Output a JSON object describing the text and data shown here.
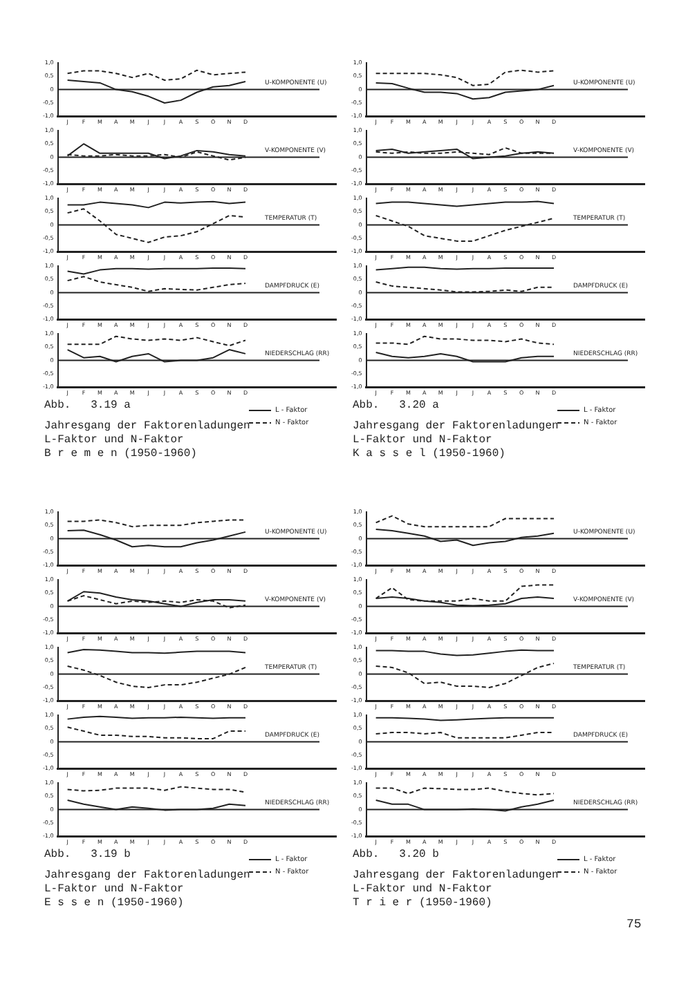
{
  "chart_data": [
    {
      "type": "line",
      "annotations": [
        "U-KOMPONENTE (U)"
      ],
      "categories": [
        "J",
        "F",
        "M",
        "A",
        "M",
        "J",
        "J",
        "A",
        "S",
        "O",
        "N",
        "D"
      ],
      "ylim": [
        -1,
        1
      ],
      "yticks": [
        {
          "value": 1,
          "label": "1,0"
        },
        {
          "value": 0.5,
          "label": "0,5"
        },
        {
          "value": 0,
          "label": "0"
        },
        {
          "value": -0.5,
          "label": "-0,5"
        },
        {
          "value": -1,
          "label": "-1,0"
        }
      ],
      "grid": false,
      "legend": false,
      "marker": "none",
      "ref_lines": [
        {
          "axis": "y",
          "value": 0
        }
      ],
      "series": [
        {
          "color": "#222222",
          "line_style": "solid",
          "values": [
            0.35,
            0.3,
            0.25,
            0.0,
            -0.08,
            -0.25,
            -0.5,
            -0.4,
            -0.1,
            0.1,
            0.15,
            0.3
          ]
        },
        {
          "color": "#222222",
          "line_style": "dashed",
          "values": [
            0.6,
            0.7,
            0.7,
            0.6,
            0.45,
            0.6,
            0.35,
            0.4,
            0.72,
            0.55,
            0.6,
            0.65
          ]
        }
      ]
    },
    {
      "type": "line",
      "annotations": [
        "V-KOMPONENTE (V)"
      ],
      "categories": [
        "J",
        "F",
        "M",
        "A",
        "M",
        "J",
        "J",
        "A",
        "S",
        "O",
        "N",
        "D"
      ],
      "ylim": [
        -1,
        1
      ],
      "yticks": [
        {
          "value": 1,
          "label": "1,0"
        },
        {
          "value": 0.5,
          "label": "0,5"
        },
        {
          "value": 0,
          "label": "0"
        },
        {
          "value": -0.5,
          "label": "-0,5"
        },
        {
          "value": -1,
          "label": "-1,0"
        }
      ],
      "grid": false,
      "legend": false,
      "marker": "none",
      "ref_lines": [
        {
          "axis": "y",
          "value": 0
        }
      ],
      "series": [
        {
          "color": "#222222",
          "line_style": "solid",
          "values": [
            0.05,
            0.5,
            0.15,
            0.15,
            0.15,
            0.15,
            -0.05,
            0.05,
            0.25,
            0.2,
            0.1,
            0.05
          ]
        },
        {
          "color": "#222222",
          "line_style": "dashed",
          "values": [
            0.1,
            0.05,
            0.05,
            0.1,
            0.05,
            0.05,
            0.1,
            0.0,
            0.2,
            0.05,
            -0.1,
            0.0
          ]
        }
      ]
    },
    {
      "type": "line",
      "annotations": [
        "TEMPERATUR (T)"
      ],
      "categories": [
        "J",
        "F",
        "M",
        "A",
        "M",
        "J",
        "J",
        "A",
        "S",
        "O",
        "N",
        "D"
      ],
      "ylim": [
        -1,
        1
      ],
      "yticks": [
        {
          "value": 1,
          "label": "1,0"
        },
        {
          "value": 0.5,
          "label": "0,5"
        },
        {
          "value": 0,
          "label": "0"
        },
        {
          "value": -0.5,
          "label": "-0,5"
        },
        {
          "value": -1,
          "label": "-1,0"
        }
      ],
      "grid": false,
      "legend": false,
      "marker": "none",
      "ref_lines": [
        {
          "axis": "y",
          "value": 0
        }
      ],
      "series": [
        {
          "color": "#222222",
          "line_style": "solid",
          "values": [
            0.75,
            0.75,
            0.85,
            0.8,
            0.75,
            0.65,
            0.85,
            0.82,
            0.85,
            0.87,
            0.8,
            0.85
          ]
        },
        {
          "color": "#222222",
          "line_style": "dashed",
          "values": [
            0.45,
            0.6,
            0.15,
            -0.35,
            -0.5,
            -0.65,
            -0.45,
            -0.4,
            -0.25,
            0.05,
            0.35,
            0.3
          ]
        }
      ]
    },
    {
      "type": "line",
      "annotations": [
        "DAMPFDRUCK (E)"
      ],
      "categories": [
        "J",
        "F",
        "M",
        "A",
        "M",
        "J",
        "J",
        "A",
        "S",
        "O",
        "N",
        "D"
      ],
      "ylim": [
        -1,
        1
      ],
      "yticks": [
        {
          "value": 1,
          "label": "1,0"
        },
        {
          "value": 0.5,
          "label": "0,5"
        },
        {
          "value": 0,
          "label": "0"
        },
        {
          "value": -0.5,
          "label": "-0,5"
        },
        {
          "value": -1,
          "label": "-1,0"
        }
      ],
      "grid": false,
      "legend": false,
      "marker": "none",
      "ref_lines": [
        {
          "axis": "y",
          "value": 0
        }
      ],
      "series": [
        {
          "color": "#222222",
          "line_style": "solid",
          "values": [
            0.8,
            0.7,
            0.85,
            0.9,
            0.9,
            0.88,
            0.9,
            0.9,
            0.9,
            0.92,
            0.92,
            0.9
          ]
        },
        {
          "color": "#222222",
          "line_style": "dashed",
          "values": [
            0.45,
            0.6,
            0.4,
            0.3,
            0.2,
            0.05,
            0.15,
            0.12,
            0.1,
            0.2,
            0.3,
            0.35
          ]
        }
      ]
    },
    {
      "type": "line",
      "annotations": [
        "NIEDERSCHLAG (RR)",
        "Abb.   3.19 a",
        "Jahresgang der Faktorenladungen",
        "L-Faktor und N-Faktor",
        "B r e m e n (1950-1960)"
      ],
      "categories": [
        "J",
        "F",
        "M",
        "A",
        "M",
        "J",
        "J",
        "A",
        "S",
        "O",
        "N",
        "D"
      ],
      "ylim": [
        -1,
        1
      ],
      "yticks": [
        {
          "value": 1,
          "label": "1,0"
        },
        {
          "value": 0.5,
          "label": "0,5"
        },
        {
          "value": 0,
          "label": "0"
        },
        {
          "value": -0.5,
          "label": "-0,5"
        },
        {
          "value": -1,
          "label": "-1,0"
        }
      ],
      "grid": false,
      "legend": "bottom right",
      "marker": "none",
      "ref_lines": [
        {
          "axis": "y",
          "value": 0
        }
      ],
      "series": [
        {
          "name": "L - Faktor",
          "color": "#222222",
          "line_style": "solid",
          "values": [
            0.4,
            0.1,
            0.15,
            -0.05,
            0.15,
            0.25,
            -0.05,
            0.0,
            0.0,
            0.1,
            0.4,
            0.25
          ]
        },
        {
          "name": "N - Faktor",
          "color": "#222222",
          "line_style": "dashed",
          "values": [
            0.6,
            0.6,
            0.6,
            0.9,
            0.8,
            0.75,
            0.8,
            0.75,
            0.85,
            0.7,
            0.55,
            0.75
          ]
        }
      ]
    },
    {
      "type": "line",
      "annotations": [
        "U-KOMPONENTE (U)"
      ],
      "categories": [
        "J",
        "F",
        "M",
        "A",
        "M",
        "J",
        "J",
        "A",
        "S",
        "O",
        "N",
        "D"
      ],
      "ylim": [
        -1,
        1
      ],
      "yticks": [
        {
          "value": 1,
          "label": "1,0"
        },
        {
          "value": 0.5,
          "label": "0,5"
        },
        {
          "value": 0,
          "label": "0"
        },
        {
          "value": -0.5,
          "label": "-0,5"
        },
        {
          "value": -1,
          "label": "-1,0"
        }
      ],
      "grid": false,
      "legend": false,
      "marker": "none",
      "ref_lines": [
        {
          "axis": "y",
          "value": 0
        }
      ],
      "series": [
        {
          "color": "#222222",
          "line_style": "solid",
          "values": [
            0.25,
            0.22,
            0.05,
            -0.1,
            -0.1,
            -0.15,
            -0.35,
            -0.3,
            -0.1,
            -0.05,
            0.0,
            0.15
          ]
        },
        {
          "color": "#222222",
          "line_style": "dashed",
          "values": [
            0.6,
            0.6,
            0.6,
            0.6,
            0.55,
            0.45,
            0.15,
            0.2,
            0.65,
            0.72,
            0.65,
            0.7
          ]
        }
      ]
    },
    {
      "type": "line",
      "annotations": [
        "V-KOMPONENTE (V)"
      ],
      "categories": [
        "J",
        "F",
        "M",
        "A",
        "M",
        "J",
        "J",
        "A",
        "S",
        "O",
        "N",
        "D"
      ],
      "ylim": [
        -1,
        1
      ],
      "yticks": [
        {
          "value": 1,
          "label": "1,0"
        },
        {
          "value": 0.5,
          "label": "0,5"
        },
        {
          "value": 0,
          "label": "0"
        },
        {
          "value": -0.5,
          "label": "-0,5"
        },
        {
          "value": -1,
          "label": "-1,0"
        }
      ],
      "grid": false,
      "legend": false,
      "marker": "none",
      "ref_lines": [
        {
          "axis": "y",
          "value": 0
        }
      ],
      "series": [
        {
          "color": "#222222",
          "line_style": "solid",
          "values": [
            0.25,
            0.3,
            0.15,
            0.2,
            0.25,
            0.3,
            -0.05,
            0.0,
            0.05,
            0.15,
            0.2,
            0.15
          ]
        },
        {
          "color": "#222222",
          "line_style": "dashed",
          "values": [
            0.2,
            0.15,
            0.2,
            0.15,
            0.15,
            0.2,
            0.15,
            0.1,
            0.35,
            0.15,
            0.15,
            0.15
          ]
        }
      ]
    },
    {
      "type": "line",
      "annotations": [
        "TEMPERATUR (T)"
      ],
      "categories": [
        "J",
        "F",
        "M",
        "A",
        "M",
        "J",
        "J",
        "A",
        "S",
        "O",
        "N",
        "D"
      ],
      "ylim": [
        -1,
        1
      ],
      "yticks": [
        {
          "value": 1,
          "label": "1,0"
        },
        {
          "value": 0.5,
          "label": "0,5"
        },
        {
          "value": 0,
          "label": "0"
        },
        {
          "value": -0.5,
          "label": "-0,5"
        },
        {
          "value": -1,
          "label": "-1,0"
        }
      ],
      "grid": false,
      "legend": false,
      "marker": "none",
      "ref_lines": [
        {
          "axis": "y",
          "value": 0
        }
      ],
      "series": [
        {
          "color": "#222222",
          "line_style": "solid",
          "values": [
            0.8,
            0.85,
            0.85,
            0.8,
            0.75,
            0.7,
            0.75,
            0.8,
            0.85,
            0.85,
            0.88,
            0.8
          ]
        },
        {
          "color": "#222222",
          "line_style": "dashed",
          "values": [
            0.35,
            0.15,
            -0.05,
            -0.4,
            -0.5,
            -0.6,
            -0.6,
            -0.4,
            -0.2,
            -0.05,
            0.1,
            0.25
          ]
        }
      ]
    },
    {
      "type": "line",
      "annotations": [
        "DAMPFDRUCK (E)"
      ],
      "categories": [
        "J",
        "F",
        "M",
        "A",
        "M",
        "J",
        "J",
        "A",
        "S",
        "O",
        "N",
        "D"
      ],
      "ylim": [
        -1,
        1
      ],
      "yticks": [
        {
          "value": 1,
          "label": "1,0"
        },
        {
          "value": 0.5,
          "label": "0,5"
        },
        {
          "value": 0,
          "label": "0"
        },
        {
          "value": -0.5,
          "label": "-0,5"
        },
        {
          "value": -1,
          "label": "-1,0"
        }
      ],
      "grid": false,
      "legend": false,
      "marker": "none",
      "ref_lines": [
        {
          "axis": "y",
          "value": 0
        }
      ],
      "series": [
        {
          "color": "#222222",
          "line_style": "solid",
          "values": [
            0.85,
            0.9,
            0.95,
            0.95,
            0.9,
            0.88,
            0.9,
            0.9,
            0.92,
            0.92,
            0.92,
            0.92
          ]
        },
        {
          "color": "#222222",
          "line_style": "dashed",
          "values": [
            0.4,
            0.25,
            0.2,
            0.15,
            0.1,
            0.03,
            0.03,
            0.05,
            0.1,
            0.05,
            0.2,
            0.2
          ]
        }
      ]
    },
    {
      "type": "line",
      "annotations": [
        "NIEDERSCHLAG (RR)",
        "Abb.   3.20 a",
        "Jahresgang der Faktorenladungen",
        "L-Faktor und N-Faktor",
        "K a s s e l (1950-1960)"
      ],
      "categories": [
        "J",
        "F",
        "M",
        "A",
        "M",
        "J",
        "J",
        "A",
        "S",
        "O",
        "N",
        "D"
      ],
      "ylim": [
        -1,
        1
      ],
      "yticks": [
        {
          "value": 1,
          "label": "1,0"
        },
        {
          "value": 0.5,
          "label": "0,5"
        },
        {
          "value": 0,
          "label": "0"
        },
        {
          "value": -0.5,
          "label": "-0,5"
        },
        {
          "value": -1,
          "label": "-1,0"
        }
      ],
      "grid": false,
      "legend": "bottom right",
      "marker": "none",
      "ref_lines": [
        {
          "axis": "y",
          "value": 0
        }
      ],
      "series": [
        {
          "name": "L - Faktor",
          "color": "#222222",
          "line_style": "solid",
          "values": [
            0.3,
            0.15,
            0.1,
            0.15,
            0.25,
            0.15,
            -0.05,
            -0.05,
            -0.05,
            0.1,
            0.15,
            0.15
          ]
        },
        {
          "name": "N - Faktor",
          "color": "#222222",
          "line_style": "dashed",
          "values": [
            0.65,
            0.65,
            0.6,
            0.9,
            0.8,
            0.8,
            0.75,
            0.75,
            0.7,
            0.8,
            0.65,
            0.6
          ]
        }
      ]
    },
    {
      "type": "line",
      "annotations": [
        "U-KOMPONENTE (U)"
      ],
      "categories": [
        "J",
        "F",
        "M",
        "A",
        "M",
        "J",
        "J",
        "A",
        "S",
        "O",
        "N",
        "D"
      ],
      "ylim": [
        -1,
        1
      ],
      "yticks": [
        {
          "value": 1,
          "label": "1,0"
        },
        {
          "value": 0.5,
          "label": "0,5"
        },
        {
          "value": 0,
          "label": "0"
        },
        {
          "value": -0.5,
          "label": "-0,5"
        },
        {
          "value": -1,
          "label": "-1,0"
        }
      ],
      "grid": false,
      "legend": false,
      "marker": "none",
      "ref_lines": [
        {
          "axis": "y",
          "value": 0
        }
      ],
      "series": [
        {
          "color": "#222222",
          "line_style": "solid",
          "values": [
            0.3,
            0.32,
            0.15,
            -0.05,
            -0.3,
            -0.25,
            -0.3,
            -0.3,
            -0.15,
            -0.05,
            0.1,
            0.25
          ]
        },
        {
          "color": "#222222",
          "line_style": "dashed",
          "values": [
            0.65,
            0.65,
            0.7,
            0.6,
            0.45,
            0.5,
            0.5,
            0.5,
            0.6,
            0.65,
            0.7,
            0.7
          ]
        }
      ]
    },
    {
      "type": "line",
      "annotations": [
        "V-KOMPONENTE (V)"
      ],
      "categories": [
        "J",
        "F",
        "M",
        "A",
        "M",
        "J",
        "J",
        "A",
        "S",
        "O",
        "N",
        "D"
      ],
      "ylim": [
        -1,
        1
      ],
      "yticks": [
        {
          "value": 1,
          "label": "1,0"
        },
        {
          "value": 0.5,
          "label": "0,5"
        },
        {
          "value": 0,
          "label": "0"
        },
        {
          "value": -0.5,
          "label": "-0,5"
        },
        {
          "value": -1,
          "label": "-1,0"
        }
      ],
      "grid": false,
      "legend": false,
      "marker": "none",
      "ref_lines": [
        {
          "axis": "y",
          "value": 0
        }
      ],
      "series": [
        {
          "color": "#222222",
          "line_style": "solid",
          "values": [
            0.2,
            0.55,
            0.5,
            0.35,
            0.25,
            0.2,
            0.1,
            0.0,
            0.15,
            0.25,
            0.25,
            0.2
          ]
        },
        {
          "color": "#222222",
          "line_style": "dashed",
          "values": [
            0.2,
            0.4,
            0.25,
            0.1,
            0.2,
            0.15,
            0.2,
            0.15,
            0.25,
            0.2,
            -0.05,
            0.05
          ]
        }
      ]
    },
    {
      "type": "line",
      "annotations": [
        "TEMPERATUR (T)"
      ],
      "categories": [
        "J",
        "F",
        "M",
        "A",
        "M",
        "J",
        "J",
        "A",
        "S",
        "O",
        "N",
        "D"
      ],
      "ylim": [
        -1,
        1
      ],
      "yticks": [
        {
          "value": 1,
          "label": "1,0"
        },
        {
          "value": 0.5,
          "label": "0,5"
        },
        {
          "value": 0,
          "label": "0"
        },
        {
          "value": -0.5,
          "label": "-0,5"
        },
        {
          "value": -1,
          "label": "-1,0"
        }
      ],
      "grid": false,
      "legend": false,
      "marker": "none",
      "ref_lines": [
        {
          "axis": "y",
          "value": 0
        }
      ],
      "series": [
        {
          "color": "#222222",
          "line_style": "solid",
          "values": [
            0.8,
            0.92,
            0.9,
            0.85,
            0.8,
            0.8,
            0.78,
            0.82,
            0.85,
            0.85,
            0.85,
            0.8
          ]
        },
        {
          "color": "#222222",
          "line_style": "dashed",
          "values": [
            0.3,
            0.15,
            -0.05,
            -0.3,
            -0.45,
            -0.5,
            -0.4,
            -0.4,
            -0.3,
            -0.15,
            0.0,
            0.25
          ]
        }
      ]
    },
    {
      "type": "line",
      "annotations": [
        "DAMPFDRUCK (E)"
      ],
      "categories": [
        "J",
        "F",
        "M",
        "A",
        "M",
        "J",
        "J",
        "A",
        "S",
        "O",
        "N",
        "D"
      ],
      "ylim": [
        -1,
        1
      ],
      "yticks": [
        {
          "value": 1,
          "label": "1,0"
        },
        {
          "value": 0.5,
          "label": "0,5"
        },
        {
          "value": 0,
          "label": "0"
        },
        {
          "value": -0.5,
          "label": "-0,5"
        },
        {
          "value": -1,
          "label": "-1,0"
        }
      ],
      "grid": false,
      "legend": false,
      "marker": "none",
      "ref_lines": [
        {
          "axis": "y",
          "value": 0
        }
      ],
      "series": [
        {
          "color": "#222222",
          "line_style": "solid",
          "values": [
            0.85,
            0.92,
            0.95,
            0.92,
            0.88,
            0.9,
            0.9,
            0.92,
            0.9,
            0.88,
            0.9,
            0.9
          ]
        },
        {
          "color": "#222222",
          "line_style": "dashed",
          "values": [
            0.55,
            0.4,
            0.25,
            0.25,
            0.2,
            0.2,
            0.15,
            0.15,
            0.12,
            0.12,
            0.4,
            0.4
          ]
        }
      ]
    },
    {
      "type": "line",
      "annotations": [
        "NIEDERSCHLAG (RR)",
        "Abb.   3.19 b",
        "Jahresgang der Faktorenladungen",
        "L-Faktor und N-Faktor",
        "E s s e n (1950-1960)"
      ],
      "categories": [
        "J",
        "F",
        "M",
        "A",
        "M",
        "J",
        "J",
        "A",
        "S",
        "O",
        "N",
        "D"
      ],
      "ylim": [
        -1,
        1
      ],
      "yticks": [
        {
          "value": 1,
          "label": "1,0"
        },
        {
          "value": 0.5,
          "label": "0,5"
        },
        {
          "value": 0,
          "label": "0"
        },
        {
          "value": -0.5,
          "label": "-0,5"
        },
        {
          "value": -1,
          "label": "-1,0"
        }
      ],
      "grid": false,
      "legend": "bottom right",
      "marker": "none",
      "ref_lines": [
        {
          "axis": "y",
          "value": 0
        }
      ],
      "series": [
        {
          "name": "L - Faktor",
          "color": "#222222",
          "line_style": "solid",
          "values": [
            0.35,
            0.2,
            0.1,
            0.0,
            0.1,
            0.05,
            -0.02,
            0.0,
            0.0,
            0.05,
            0.2,
            0.15
          ]
        },
        {
          "name": "N - Faktor",
          "color": "#222222",
          "line_style": "dashed",
          "values": [
            0.75,
            0.7,
            0.72,
            0.8,
            0.8,
            0.8,
            0.72,
            0.85,
            0.8,
            0.75,
            0.75,
            0.65
          ]
        }
      ]
    },
    {
      "type": "line",
      "annotations": [
        "U-KOMPONENTE (U)"
      ],
      "categories": [
        "J",
        "F",
        "M",
        "A",
        "M",
        "J",
        "J",
        "A",
        "S",
        "O",
        "N",
        "D"
      ],
      "ylim": [
        -1,
        1
      ],
      "yticks": [
        {
          "value": 1,
          "label": "1,0"
        },
        {
          "value": 0.5,
          "label": "0,5"
        },
        {
          "value": 0,
          "label": "0"
        },
        {
          "value": -0.5,
          "label": "-0,5"
        },
        {
          "value": -1,
          "label": "-1,0"
        }
      ],
      "grid": false,
      "legend": false,
      "marker": "none",
      "ref_lines": [
        {
          "axis": "y",
          "value": 0
        }
      ],
      "series": [
        {
          "color": "#222222",
          "line_style": "solid",
          "values": [
            0.35,
            0.3,
            0.2,
            0.1,
            -0.1,
            -0.05,
            -0.25,
            -0.15,
            -0.1,
            0.05,
            0.1,
            0.2
          ]
        },
        {
          "color": "#222222",
          "line_style": "dashed",
          "values": [
            0.6,
            0.85,
            0.55,
            0.45,
            0.45,
            0.45,
            0.45,
            0.45,
            0.75,
            0.75,
            0.75,
            0.75
          ]
        }
      ]
    },
    {
      "type": "line",
      "annotations": [
        "V-KOMPONENTE (V)"
      ],
      "categories": [
        "J",
        "F",
        "M",
        "A",
        "M",
        "J",
        "J",
        "A",
        "S",
        "O",
        "N",
        "D"
      ],
      "ylim": [
        -1,
        1
      ],
      "yticks": [
        {
          "value": 1,
          "label": "1,0"
        },
        {
          "value": 0.5,
          "label": "0,5"
        },
        {
          "value": 0,
          "label": "0"
        },
        {
          "value": -0.5,
          "label": "-0,5"
        },
        {
          "value": -1,
          "label": "-1,0"
        }
      ],
      "grid": false,
      "legend": false,
      "marker": "none",
      "ref_lines": [
        {
          "axis": "y",
          "value": 0
        }
      ],
      "series": [
        {
          "color": "#222222",
          "line_style": "solid",
          "values": [
            0.3,
            0.35,
            0.3,
            0.2,
            0.15,
            0.05,
            0.03,
            0.05,
            0.1,
            0.3,
            0.35,
            0.3
          ]
        },
        {
          "color": "#222222",
          "line_style": "dashed",
          "values": [
            0.3,
            0.7,
            0.25,
            0.2,
            0.2,
            0.2,
            0.3,
            0.2,
            0.2,
            0.75,
            0.8,
            0.8
          ]
        }
      ]
    },
    {
      "type": "line",
      "annotations": [
        "TEMPERATUR (T)"
      ],
      "categories": [
        "J",
        "F",
        "M",
        "A",
        "M",
        "J",
        "J",
        "A",
        "S",
        "O",
        "N",
        "D"
      ],
      "ylim": [
        -1,
        1
      ],
      "yticks": [
        {
          "value": 1,
          "label": "1,0"
        },
        {
          "value": 0.5,
          "label": "0,5"
        },
        {
          "value": 0,
          "label": "0"
        },
        {
          "value": -0.5,
          "label": "-0,5"
        },
        {
          "value": -1,
          "label": "-1,0"
        }
      ],
      "grid": false,
      "legend": false,
      "marker": "none",
      "ref_lines": [
        {
          "axis": "y",
          "value": 0
        }
      ],
      "series": [
        {
          "color": "#222222",
          "line_style": "solid",
          "values": [
            0.88,
            0.88,
            0.85,
            0.85,
            0.75,
            0.7,
            0.72,
            0.78,
            0.85,
            0.9,
            0.88,
            0.88
          ]
        },
        {
          "color": "#222222",
          "line_style": "dashed",
          "values": [
            0.3,
            0.25,
            0.05,
            -0.35,
            -0.3,
            -0.45,
            -0.45,
            -0.5,
            -0.35,
            -0.05,
            0.25,
            0.4
          ]
        }
      ]
    },
    {
      "type": "line",
      "annotations": [
        "DAMPFDRUCK (E)"
      ],
      "categories": [
        "J",
        "F",
        "M",
        "A",
        "M",
        "J",
        "J",
        "A",
        "S",
        "O",
        "N",
        "D"
      ],
      "ylim": [
        -1,
        1
      ],
      "yticks": [
        {
          "value": 1,
          "label": "1,0"
        },
        {
          "value": 0.5,
          "label": "0,5"
        },
        {
          "value": 0,
          "label": "0"
        },
        {
          "value": -0.5,
          "label": "-0,5"
        },
        {
          "value": -1,
          "label": "-1,0"
        }
      ],
      "grid": false,
      "legend": false,
      "marker": "none",
      "ref_lines": [
        {
          "axis": "y",
          "value": 0
        }
      ],
      "series": [
        {
          "color": "#222222",
          "line_style": "solid",
          "values": [
            0.9,
            0.9,
            0.88,
            0.85,
            0.8,
            0.82,
            0.85,
            0.88,
            0.9,
            0.9,
            0.9,
            0.9
          ]
        },
        {
          "color": "#222222",
          "line_style": "dashed",
          "values": [
            0.3,
            0.35,
            0.35,
            0.3,
            0.35,
            0.15,
            0.15,
            0.15,
            0.15,
            0.25,
            0.35,
            0.35
          ]
        }
      ]
    },
    {
      "type": "line",
      "annotations": [
        "NIEDERSCHLAG (RR)",
        "Abb.   3.20 b",
        "Jahresgang der Faktorenladungen",
        "L-Faktor und N-Faktor",
        "T r i e r (1950-1960)",
        "75"
      ],
      "categories": [
        "J",
        "F",
        "M",
        "A",
        "M",
        "J",
        "J",
        "A",
        "S",
        "O",
        "N",
        "D"
      ],
      "ylim": [
        -1,
        1
      ],
      "yticks": [
        {
          "value": 1,
          "label": "1,0"
        },
        {
          "value": 0.5,
          "label": "0,5"
        },
        {
          "value": 0,
          "label": "0"
        },
        {
          "value": -0.5,
          "label": "-0,5"
        },
        {
          "value": -1,
          "label": "-1,0"
        }
      ],
      "grid": false,
      "legend": "bottom right",
      "marker": "none",
      "ref_lines": [
        {
          "axis": "y",
          "value": 0
        }
      ],
      "series": [
        {
          "name": "L - Faktor",
          "color": "#222222",
          "line_style": "solid",
          "values": [
            0.35,
            0.2,
            0.2,
            0.0,
            0.0,
            0.0,
            0.02,
            0.0,
            -0.05,
            0.1,
            0.2,
            0.35
          ]
        },
        {
          "name": "N - Faktor",
          "color": "#222222",
          "line_style": "dashed",
          "values": [
            0.8,
            0.8,
            0.6,
            0.8,
            0.78,
            0.75,
            0.75,
            0.8,
            0.68,
            0.6,
            0.55,
            0.6
          ]
        }
      ]
    }
  ]
}
